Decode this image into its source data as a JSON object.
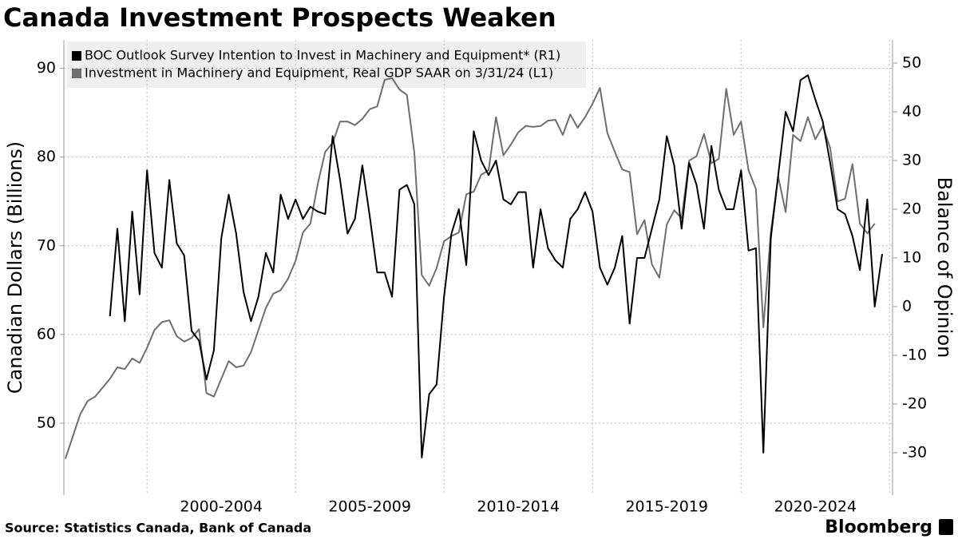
{
  "chart_data": {
    "type": "line",
    "title": "Canada Investment Prospects Weaken",
    "source": "Source: Statistics Canada, Bank of Canada",
    "brand": "Bloomberg",
    "ylabel": "Canadian Dollars (Billions)",
    "y2label": "Balance of Opinion",
    "grid": true,
    "xlim": [
      1997.2,
      2025.1
    ],
    "xticks": [
      {
        "value": 2002.5,
        "label": "2000-2004"
      },
      {
        "value": 2007.5,
        "label": "2005-2009"
      },
      {
        "value": 2012.5,
        "label": "2010-2014"
      },
      {
        "value": 2017.5,
        "label": "2015-2019"
      },
      {
        "value": 2022.5,
        "label": "2020-2024"
      }
    ],
    "xgrid": [
      2000,
      2005,
      2010,
      2015,
      2020,
      2025
    ],
    "ylim": [
      41.9,
      93.2
    ],
    "yticks": [
      50,
      60,
      70,
      80,
      90
    ],
    "y2lim": [
      -38.7,
      54.75
    ],
    "y2ticks": [
      -30,
      -20,
      -10,
      0,
      10,
      20,
      30,
      40,
      50
    ],
    "x": [
      1997.25,
      1997.5,
      1997.75,
      1998,
      1998.25,
      1998.5,
      1998.75,
      1999,
      1999.25,
      1999.5,
      1999.75,
      2000,
      2000.25,
      2000.5,
      2000.75,
      2001,
      2001.25,
      2001.5,
      2001.75,
      2002,
      2002.25,
      2002.5,
      2002.75,
      2003,
      2003.25,
      2003.5,
      2003.75,
      2004,
      2004.25,
      2004.5,
      2004.75,
      2005,
      2005.25,
      2005.5,
      2005.75,
      2006,
      2006.25,
      2006.5,
      2006.75,
      2007,
      2007.25,
      2007.5,
      2007.75,
      2008,
      2008.25,
      2008.5,
      2008.75,
      2009,
      2009.25,
      2009.5,
      2009.75,
      2010,
      2010.25,
      2010.5,
      2010.75,
      2011,
      2011.25,
      2011.5,
      2011.75,
      2012,
      2012.25,
      2012.5,
      2012.75,
      2013,
      2013.25,
      2013.5,
      2013.75,
      2014,
      2014.25,
      2014.5,
      2014.75,
      2015,
      2015.25,
      2015.5,
      2015.75,
      2016,
      2016.25,
      2016.5,
      2016.75,
      2017,
      2017.25,
      2017.5,
      2017.75,
      2018,
      2018.25,
      2018.5,
      2018.75,
      2019,
      2019.25,
      2019.5,
      2019.75,
      2020,
      2020.25,
      2020.5,
      2020.75,
      2021,
      2021.25,
      2021.5,
      2021.75,
      2022,
      2022.25,
      2022.5,
      2022.75,
      2023,
      2023.25,
      2023.5,
      2023.75,
      2024,
      2024.25,
      2024.5,
      2024.75
    ],
    "series": [
      {
        "name": "BOC Outlook Survey Intention to Invest in Machinery and Equipment* (R1)",
        "color": "#000000",
        "axis": "y2",
        "values": [
          null,
          null,
          null,
          null,
          null,
          null,
          -2,
          16,
          -3,
          19.5,
          2.5,
          28,
          11,
          8,
          26,
          13,
          10.5,
          -5,
          -7,
          -15,
          -9,
          14,
          23,
          15,
          3,
          -3,
          2,
          11,
          7,
          23,
          18,
          22,
          18,
          20.5,
          19.5,
          19,
          35,
          26,
          15,
          18,
          29,
          18.5,
          7,
          7,
          2,
          24,
          25,
          21,
          -31,
          -18,
          -16,
          2,
          15,
          20,
          8.5,
          36,
          30,
          27,
          30,
          22,
          21,
          23.5,
          23.5,
          8,
          20,
          12,
          9.5,
          8,
          18,
          20,
          23.5,
          19.5,
          8,
          4.5,
          8,
          14.5,
          -3.5,
          10,
          10,
          16,
          22,
          35,
          29,
          16,
          29.5,
          25,
          16,
          33,
          24,
          20,
          20,
          28,
          11.5,
          12,
          -30,
          14,
          27,
          40,
          36,
          46.5,
          47.5,
          42.5,
          38,
          29.5,
          20,
          19,
          14.5,
          7.5,
          22,
          0,
          10.8
        ]
      },
      {
        "name": "Investment in Machinery and Equipment, Real GDP SAAR on 3/31/24 (L1)",
        "color": "#6e6e6e",
        "values": [
          46,
          48.5,
          51,
          52.5,
          53,
          54,
          55,
          56.3,
          56.1,
          57.3,
          56.8,
          58.5,
          60.5,
          61.4,
          61.6,
          59.8,
          59.2,
          59.6,
          60.6,
          53.4,
          53,
          55,
          57,
          56.3,
          56.5,
          58,
          60.5,
          63,
          64.6,
          65,
          66.3,
          68.3,
          71.5,
          72.5,
          77,
          80.6,
          81.6,
          84,
          84,
          83.6,
          84.3,
          85.4,
          85.7,
          88.7,
          88.9,
          87.6,
          87,
          80.5,
          66.7,
          65.5,
          67.5,
          70.5,
          71.1,
          71.5,
          75.8,
          76.1,
          78,
          78.5,
          84.5,
          80.2,
          81.4,
          82.8,
          83.5,
          83.4,
          83.5,
          84.1,
          84.2,
          82.5,
          84.8,
          83.3,
          84.5,
          86,
          87.8,
          82.7,
          80.6,
          78.6,
          78.3,
          71.3,
          72.9,
          67.9,
          66.4,
          72.4,
          74,
          73.1,
          79.6,
          80.1,
          82.6,
          79.3,
          79.8,
          87.7,
          82.5,
          84,
          78.5,
          76.4,
          60.8,
          71.5,
          77.8,
          73.8,
          82.5,
          81.8,
          84.5,
          82,
          83.5,
          81,
          75,
          75.3,
          79.2,
          72.5,
          71.4,
          72.5,
          null
        ]
      }
    ]
  }
}
